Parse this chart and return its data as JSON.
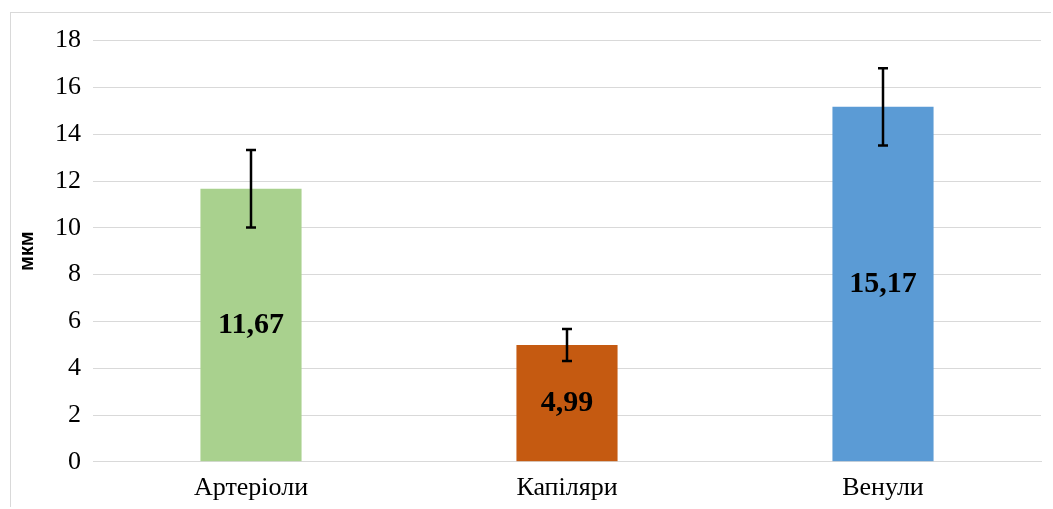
{
  "chart_data": {
    "type": "bar",
    "ylabel": "мкм",
    "categories": [
      "Артеріоли",
      "Капіляри",
      "Венули"
    ],
    "values": [
      11.67,
      4.99,
      15.17
    ],
    "colors": [
      "#a9d18e",
      "#c55a11",
      "#5b9bd5"
    ],
    "errors": [
      1.66,
      0.68,
      1.65
    ],
    "value_labels": [
      "11,67",
      "4,99",
      "15,17"
    ],
    "ylim": [
      0,
      18
    ],
    "yticks": [
      0,
      2,
      4,
      6,
      8,
      10,
      12,
      14,
      16,
      18
    ],
    "grid": "y",
    "legend": false
  }
}
